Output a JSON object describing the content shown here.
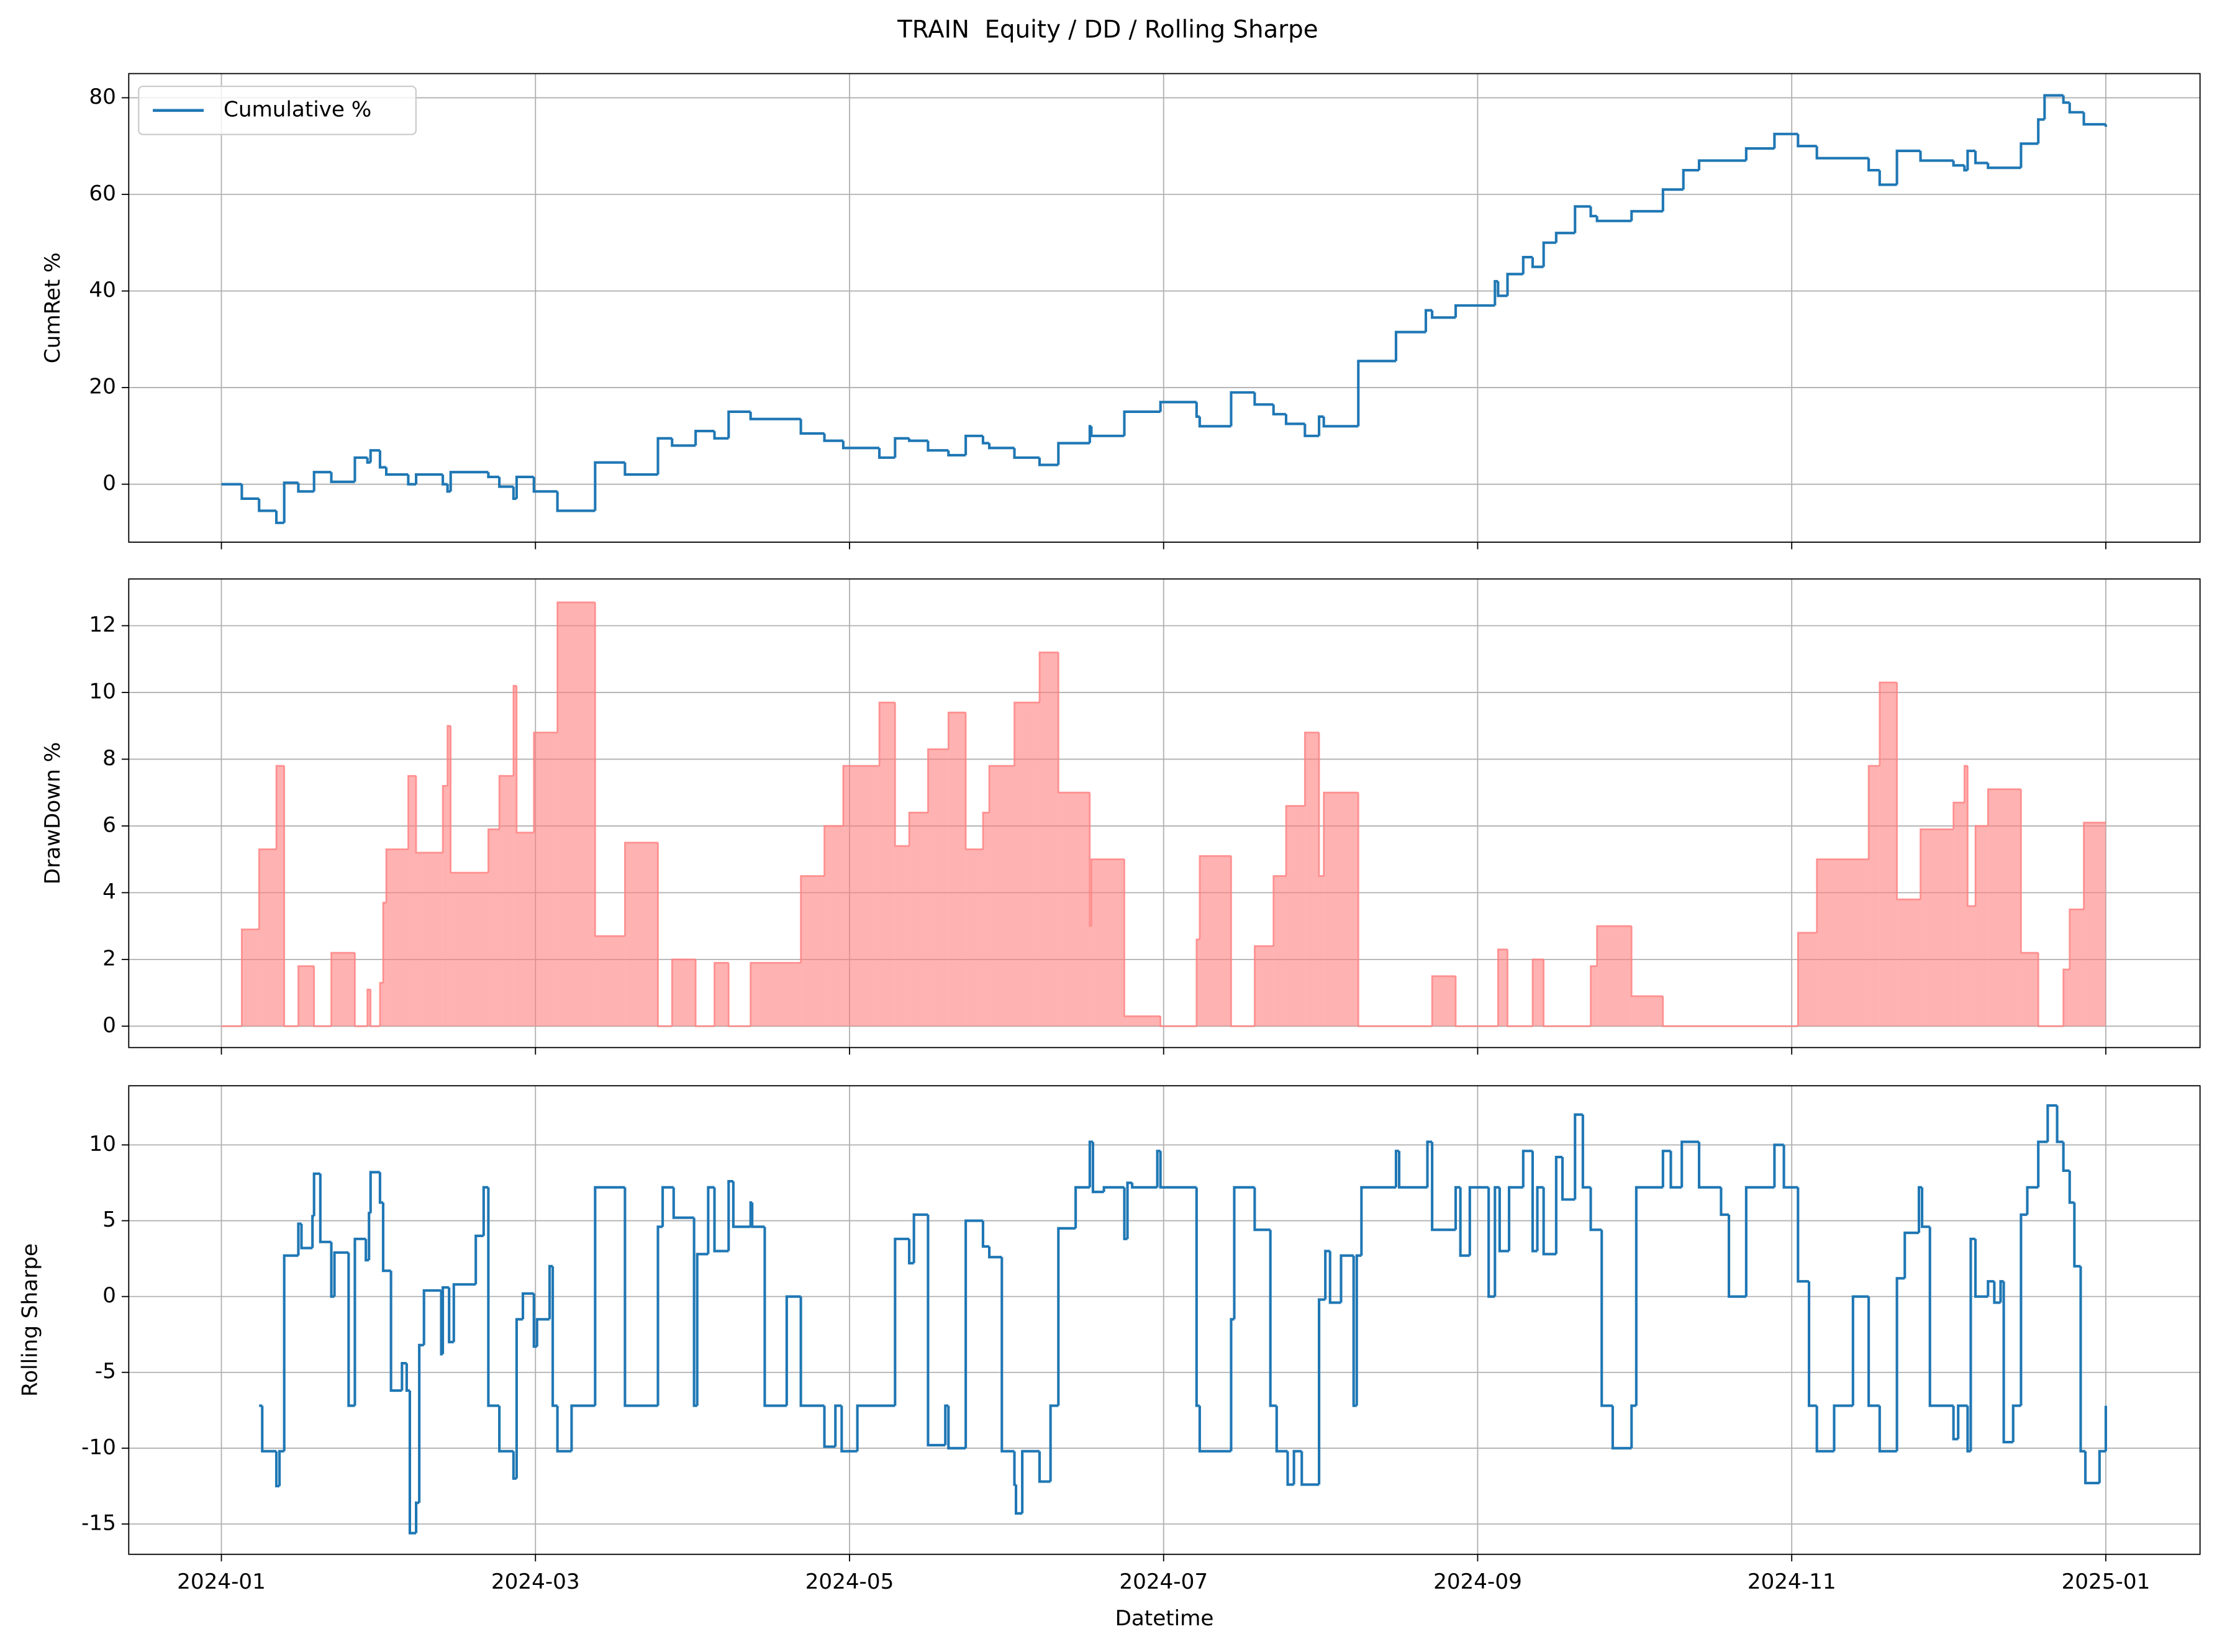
{
  "title": "TRAIN  Equity / DD / Rolling Sharpe",
  "chart_data": [
    {
      "type": "line",
      "step": "post",
      "ylabel": "CumRet %",
      "grid": true,
      "legend": "upper left",
      "xlim": [
        0.41,
        13.6
      ],
      "xticks": [
        1,
        3,
        5,
        7,
        9,
        11,
        13
      ],
      "ylim": [
        -12,
        85
      ],
      "yticks": [
        0,
        20,
        40,
        60,
        80
      ],
      "x": [
        1.0,
        1.13,
        1.24,
        1.35,
        1.4,
        1.49,
        1.59,
        1.7,
        1.85,
        1.93,
        1.95,
        2.01,
        2.05,
        2.19,
        2.24,
        2.41,
        2.44,
        2.46,
        2.7,
        2.77,
        2.86,
        2.88,
        2.99,
        3.14,
        3.38,
        3.57,
        3.78,
        3.87,
        4.02,
        4.14,
        4.23,
        4.37,
        4.69,
        4.84,
        4.96,
        5.19,
        5.29,
        5.38,
        5.5,
        5.63,
        5.74,
        5.85,
        5.89,
        6.05,
        6.21,
        6.33,
        6.53,
        6.54,
        6.75,
        6.98,
        7.21,
        7.23,
        7.43,
        7.58,
        7.7,
        7.78,
        7.9,
        7.99,
        8.02,
        8.24,
        8.48,
        8.67,
        8.71,
        8.86,
        9.11,
        9.13,
        9.19,
        9.29,
        9.35,
        9.42,
        9.5,
        9.62,
        9.72,
        9.76,
        9.98,
        10.18,
        10.31,
        10.41,
        10.71,
        10.89,
        11.04,
        11.16,
        11.49,
        11.56,
        11.67,
        11.82,
        12.03,
        12.1,
        12.12,
        12.17,
        12.25,
        12.46,
        12.57,
        12.61,
        12.73,
        12.77,
        12.86,
        13.0
      ],
      "series": [
        {
          "name": "Cumulative %",
          "color": "#1f77b4",
          "values": [
            0,
            -3,
            -5.5,
            -8,
            0.3,
            -1.5,
            2.5,
            0.5,
            5.5,
            4.5,
            7,
            3.5,
            2,
            0,
            2,
            0,
            -1.5,
            2.5,
            1.5,
            -0.5,
            -3,
            1.5,
            -1.5,
            -5.5,
            4.5,
            2,
            9.5,
            8,
            11,
            9.5,
            15,
            13.5,
            10.5,
            9,
            7.5,
            5.5,
            9.5,
            9,
            7,
            6,
            10,
            8.5,
            7.5,
            5.5,
            4,
            8.5,
            12,
            10,
            15,
            17,
            14,
            12,
            19,
            16.5,
            14.5,
            12.5,
            10,
            14,
            12,
            25.5,
            31.5,
            36,
            34.5,
            37,
            42,
            39,
            43.5,
            47,
            45,
            50,
            52,
            57.5,
            55.5,
            54.5,
            56.5,
            61,
            65,
            67,
            69.5,
            72.5,
            70,
            67.5,
            65,
            62,
            69,
            67,
            66,
            65,
            69,
            66.5,
            65.5,
            70.5,
            75.5,
            80.5,
            79,
            77,
            74.5,
            74
          ]
        }
      ]
    },
    {
      "type": "area",
      "step": "post",
      "ylabel": "DrawDown %",
      "grid": true,
      "color": "#ff7f7f",
      "xlim": [
        0.41,
        13.6
      ],
      "xticks": [
        1,
        3,
        5,
        7,
        9,
        11,
        13
      ],
      "ylim": [
        -0.64,
        13.4
      ],
      "yticks": [
        0,
        2,
        4,
        6,
        8,
        10,
        12
      ],
      "x": [
        1.0,
        1.13,
        1.24,
        1.35,
        1.4,
        1.49,
        1.59,
        1.7,
        1.85,
        1.93,
        1.95,
        2.01,
        2.03,
        2.05,
        2.19,
        2.24,
        2.41,
        2.44,
        2.46,
        2.7,
        2.77,
        2.86,
        2.88,
        2.99,
        3.14,
        3.38,
        3.57,
        3.78,
        3.87,
        4.02,
        4.14,
        4.23,
        4.37,
        4.69,
        4.84,
        4.96,
        5.19,
        5.29,
        5.38,
        5.5,
        5.63,
        5.74,
        5.85,
        5.89,
        6.05,
        6.21,
        6.33,
        6.53,
        6.54,
        6.75,
        6.98,
        7.21,
        7.23,
        7.43,
        7.58,
        7.7,
        7.78,
        7.9,
        7.99,
        8.02,
        8.24,
        8.71,
        8.86,
        9.13,
        9.19,
        9.35,
        9.42,
        9.72,
        9.76,
        9.98,
        10.18,
        11.04,
        11.16,
        11.49,
        11.56,
        11.67,
        11.82,
        12.03,
        12.1,
        12.12,
        12.17,
        12.25,
        12.46,
        12.57,
        12.73,
        12.77,
        12.86,
        13.0
      ],
      "values": [
        0,
        2.9,
        5.3,
        7.8,
        0,
        1.8,
        0,
        2.2,
        0,
        1.1,
        0,
        1.3,
        3.7,
        5.3,
        7.5,
        5.2,
        7.2,
        9,
        4.6,
        5.9,
        7.5,
        10.2,
        5.8,
        8.8,
        12.7,
        2.7,
        5.5,
        0,
        2,
        0,
        1.9,
        0,
        1.9,
        4.5,
        6,
        7.8,
        9.7,
        5.4,
        6.4,
        8.3,
        9.4,
        5.3,
        6.4,
        7.8,
        9.7,
        11.2,
        7,
        3,
        5,
        0.3,
        0,
        2.6,
        5.1,
        0,
        2.4,
        4.5,
        6.6,
        8.8,
        4.5,
        7,
        0,
        1.5,
        0,
        2.3,
        0,
        2,
        0,
        1.8,
        3,
        0.9,
        0,
        2.8,
        5,
        7.8,
        10.3,
        3.8,
        5.9,
        6.7,
        7.8,
        3.6,
        6,
        7.1,
        2.2,
        0,
        1.7,
        3.5,
        6.1,
        6.1
      ]
    },
    {
      "type": "line",
      "step": "post",
      "ylabel": "Rolling Sharpe",
      "xlabel": "Datetime",
      "grid": true,
      "color": "#1f77b4",
      "xlim": [
        0.41,
        13.6
      ],
      "xticks": [
        {
          "value": 1,
          "label": "2024-01"
        },
        {
          "value": 3,
          "label": "2024-03"
        },
        {
          "value": 5,
          "label": "2024-05"
        },
        {
          "value": 7,
          "label": "2024-07"
        },
        {
          "value": 9,
          "label": "2024-09"
        },
        {
          "value": 11,
          "label": "2024-11"
        },
        {
          "value": 13,
          "label": "2025-01"
        }
      ],
      "ylim": [
        -17,
        13.9
      ],
      "yticks": [
        -15,
        -10,
        -5,
        0,
        5,
        10
      ],
      "x": [
        1.24,
        1.26,
        1.35,
        1.37,
        1.4,
        1.49,
        1.51,
        1.58,
        1.59,
        1.63,
        1.7,
        1.72,
        1.81,
        1.85,
        1.92,
        1.94,
        1.95,
        2.01,
        2.03,
        2.08,
        2.15,
        2.18,
        2.2,
        2.24,
        2.26,
        2.29,
        2.4,
        2.41,
        2.45,
        2.48,
        2.62,
        2.67,
        2.7,
        2.77,
        2.86,
        2.88,
        2.92,
        2.99,
        3.01,
        3.09,
        3.11,
        3.14,
        3.23,
        3.38,
        3.57,
        3.78,
        3.81,
        3.88,
        4.01,
        4.03,
        4.1,
        4.14,
        4.23,
        4.26,
        4.37,
        4.38,
        4.46,
        4.6,
        4.69,
        4.84,
        4.91,
        4.95,
        5.05,
        5.29,
        5.38,
        5.41,
        5.5,
        5.61,
        5.63,
        5.74,
        5.85,
        5.89,
        5.97,
        6.05,
        6.06,
        6.1,
        6.21,
        6.28,
        6.33,
        6.44,
        6.53,
        6.55,
        6.62,
        6.75,
        6.77,
        6.8,
        6.96,
        6.98,
        7.21,
        7.23,
        7.43,
        7.45,
        7.58,
        7.68,
        7.72,
        7.79,
        7.83,
        7.88,
        7.99,
        8.03,
        8.06,
        8.13,
        8.21,
        8.23,
        8.26,
        8.48,
        8.5,
        8.68,
        8.71,
        8.86,
        8.89,
        8.95,
        9.07,
        9.11,
        9.14,
        9.2,
        9.29,
        9.35,
        9.38,
        9.42,
        9.5,
        9.54,
        9.62,
        9.67,
        9.72,
        9.79,
        9.86,
        9.98,
        10.01,
        10.18,
        10.23,
        10.3,
        10.41,
        10.55,
        10.6,
        10.71,
        10.89,
        10.95,
        11.04,
        11.11,
        11.16,
        11.27,
        11.39,
        11.49,
        11.56,
        11.67,
        11.72,
        11.81,
        11.83,
        11.88,
        12.03,
        12.06,
        12.12,
        12.14,
        12.17,
        12.25,
        12.29,
        12.33,
        12.35,
        12.41,
        12.46,
        12.5,
        12.57,
        12.63,
        12.69,
        12.73,
        12.77,
        12.8,
        12.84,
        12.87,
        12.96,
        13.0
      ],
      "values": [
        -7.2,
        -10.2,
        -12.5,
        -10.2,
        2.7,
        4.8,
        3.2,
        5.3,
        8.1,
        3.6,
        0,
        2.9,
        -7.2,
        3.8,
        2.4,
        5.5,
        8.2,
        6.2,
        1.7,
        -6.2,
        -4.4,
        -6.2,
        -15.6,
        -13.6,
        -3.2,
        0.4,
        -3.8,
        0.6,
        -3,
        0.8,
        4,
        7.2,
        -7.2,
        -10.2,
        -12,
        -1.5,
        0.2,
        -3.3,
        -1.5,
        2,
        -7.2,
        -10.2,
        -7.2,
        7.2,
        -7.2,
        4.6,
        7.2,
        5.2,
        -7.2,
        2.8,
        7.2,
        3,
        7.6,
        4.6,
        6.2,
        4.6,
        -7.2,
        0,
        -7.2,
        -9.9,
        -7.2,
        -10.2,
        -7.2,
        3.8,
        2.2,
        5.4,
        -9.8,
        -7.2,
        -10,
        5,
        3.3,
        2.6,
        -10.2,
        -12.4,
        -14.3,
        -10.2,
        -12.2,
        -7.2,
        4.5,
        7.2,
        10.2,
        6.9,
        7.2,
        3.8,
        7.5,
        7.2,
        9.6,
        7.2,
        -7.2,
        -10.2,
        -1.5,
        7.2,
        4.4,
        -7.2,
        -10.2,
        -12.4,
        -10.2,
        -12.4,
        -0.2,
        3,
        -0.4,
        2.7,
        -7.2,
        2.7,
        7.2,
        9.6,
        7.2,
        10.2,
        4.4,
        7.2,
        2.7,
        7.2,
        0,
        7.2,
        3,
        7.2,
        9.6,
        3,
        7.2,
        2.8,
        9.2,
        6.4,
        12,
        7.2,
        4.4,
        -7.2,
        -10,
        -7.2,
        7.2,
        9.6,
        7.2,
        10.2,
        7.2,
        5.4,
        0,
        7.2,
        10,
        7.2,
        1,
        -7.2,
        -10.2,
        -7.2,
        0,
        -7.2,
        -10.2,
        1.2,
        4.2,
        7.2,
        4.6,
        -7.2,
        -9.4,
        -7.2,
        -10.2,
        3.8,
        0,
        1,
        -0.4,
        1,
        -9.6,
        -7.2,
        5.4,
        7.2,
        10.2,
        12.6,
        10.2,
        8.3,
        6.2,
        2,
        -10.2,
        -12.3,
        -10.2,
        -7.2
      ]
    }
  ]
}
